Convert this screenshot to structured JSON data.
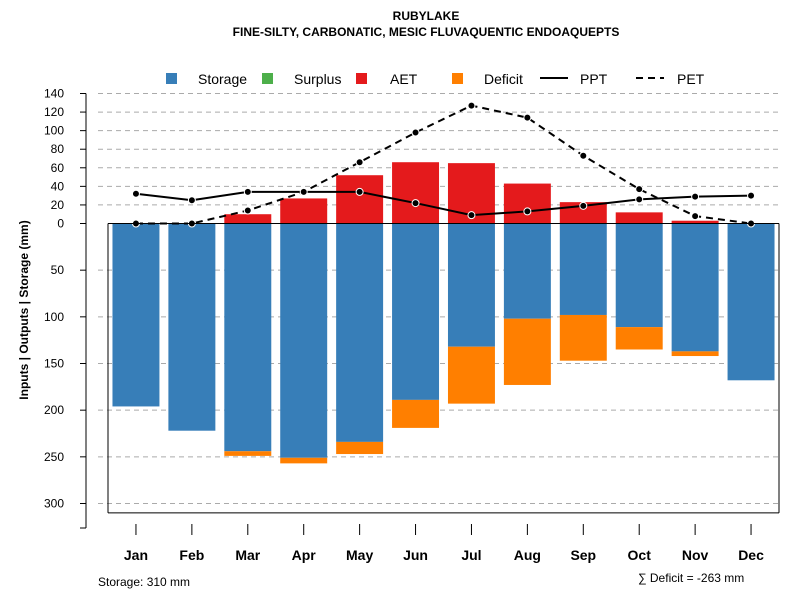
{
  "chart_data": {
    "type": "bar",
    "title": "RUBYLAKE",
    "subtitle": "FINE-SILTY, CARBONATIC, MESIC FLUVAQUENTIC ENDOAQUEPTS",
    "ylabel": "Inputs | Outputs | Storage    (mm)",
    "categories": [
      "Jan",
      "Feb",
      "Mar",
      "Apr",
      "May",
      "Jun",
      "Jul",
      "Aug",
      "Sep",
      "Oct",
      "Nov",
      "Dec"
    ],
    "upper_axis": {
      "ylim": [
        0,
        140
      ],
      "ticks": [
        "140",
        "120",
        "100",
        "80",
        "60",
        "40",
        "20",
        "0"
      ],
      "tick_values": [
        140,
        120,
        100,
        80,
        60,
        40,
        20,
        0
      ]
    },
    "lower_axis": {
      "ylim": [
        0,
        310
      ],
      "ticks": [
        "50",
        "100",
        "150",
        "200",
        "250",
        "300"
      ],
      "tick_values": [
        50,
        100,
        150,
        200,
        250,
        300
      ]
    },
    "series": [
      {
        "name": "Storage",
        "color": "#377EB8",
        "values": [
          196,
          222,
          244,
          251,
          234,
          189,
          132,
          102,
          98,
          111,
          137,
          168
        ]
      },
      {
        "name": "Surplus",
        "color": "#4DAF4A",
        "values": [
          0,
          0,
          0,
          0,
          0,
          0,
          0,
          0,
          0,
          0,
          0,
          0
        ]
      },
      {
        "name": "AET",
        "color": "#E41A1C",
        "values": [
          0,
          0,
          10,
          27,
          52,
          66,
          65,
          43,
          23,
          12,
          3,
          0
        ]
      },
      {
        "name": "Deficit",
        "color": "#FF7F00",
        "values": [
          0,
          0,
          5,
          6,
          13,
          30,
          61,
          71,
          49,
          24,
          5,
          0
        ]
      },
      {
        "name": "PPT",
        "color": "#000000",
        "style": "solid",
        "values": [
          32,
          25,
          34,
          34,
          34,
          22,
          9,
          13,
          19,
          26,
          29,
          30
        ]
      },
      {
        "name": "PET",
        "color": "#000000",
        "style": "dashed",
        "values": [
          0,
          0,
          14,
          34,
          66,
          98,
          127,
          114,
          73,
          37,
          8,
          0
        ]
      }
    ],
    "storage_text": "Storage: 310 mm",
    "deficit_text": "∑ Deficit = -263 mm"
  }
}
